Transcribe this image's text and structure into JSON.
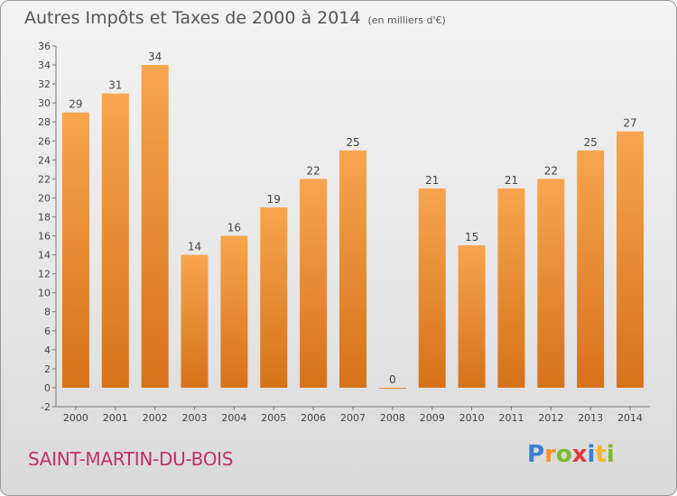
{
  "header": {
    "title": "Autres Impôts et Taxes de 2000 à 2014",
    "unit": "(en milliers d'€)"
  },
  "footer": {
    "commune": "SAINT-MARTIN-DU-BOIS",
    "logo": "Proxiti"
  },
  "colors": {
    "bar_light": "#f6a14a",
    "bar_dark": "#d97419",
    "commune_text": "#c0306a"
  },
  "chart_data": {
    "type": "bar",
    "categories": [
      "2000",
      "2001",
      "2002",
      "2003",
      "2004",
      "2005",
      "2006",
      "2007",
      "2008",
      "2009",
      "2010",
      "2011",
      "2012",
      "2013",
      "2014"
    ],
    "values": [
      29,
      31,
      34,
      14,
      16,
      19,
      22,
      25,
      0,
      21,
      15,
      21,
      22,
      25,
      27
    ],
    "ylim": [
      -2,
      36
    ],
    "yticks": [
      -2,
      0,
      2,
      4,
      6,
      8,
      10,
      12,
      14,
      16,
      18,
      20,
      22,
      24,
      26,
      28,
      30,
      32,
      34,
      36
    ],
    "grid": false
  }
}
